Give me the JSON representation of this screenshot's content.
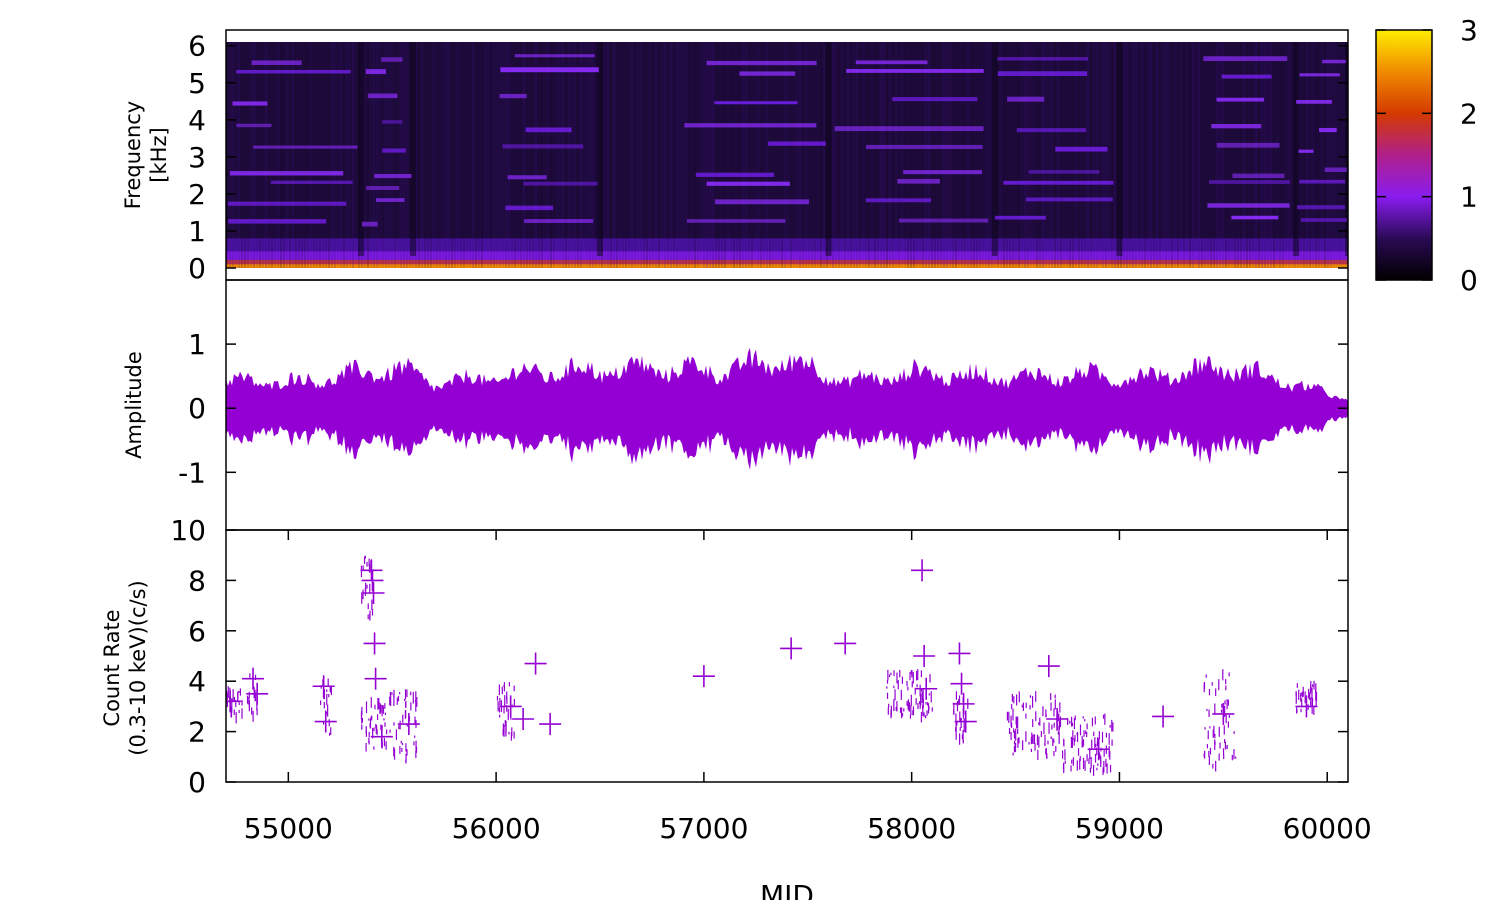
{
  "chart_data": [
    {
      "type": "heatmap",
      "ylabel_lines": [
        "Frequency",
        "[kHz]"
      ],
      "ylim": [
        0,
        6.1
      ],
      "yticks": [
        0,
        1,
        2,
        3,
        4,
        5,
        6
      ],
      "xlim": [
        54700,
        60100
      ],
      "colorbar": {
        "range": [
          0,
          3
        ],
        "ticks": [
          0,
          1,
          2,
          3
        ],
        "colors": [
          "#000000",
          "#2a0a55",
          "#8a1cf0",
          "#b0208a",
          "#d43a00",
          "#f08a00",
          "#ffee00"
        ]
      },
      "active_segments": [
        [
          54700,
          55350
        ],
        [
          55350,
          55600
        ],
        [
          56000,
          56500
        ],
        [
          56900,
          57600
        ],
        [
          57600,
          58400
        ],
        [
          58400,
          59000
        ],
        [
          59400,
          59850
        ],
        [
          59850,
          60100
        ]
      ],
      "harmonics_khz": [
        0.1,
        0.35,
        0.6,
        1.3,
        1.8,
        2.3,
        2.6,
        3.3,
        3.9,
        4.6,
        5.3,
        5.7
      ]
    },
    {
      "type": "area",
      "ylabel": "Amplitude",
      "ylim": [
        -1.9,
        2.0
      ],
      "yticks": [
        -1,
        0,
        1
      ],
      "xlim": [
        54700,
        60100
      ],
      "color": "#9400d3",
      "envelope_peaks": [
        [
          54700,
          0.6
        ],
        [
          55050,
          0.6
        ],
        [
          55300,
          0.75
        ],
        [
          55520,
          0.9
        ],
        [
          55700,
          0.55
        ],
        [
          56000,
          0.7
        ],
        [
          56150,
          0.8
        ],
        [
          56400,
          0.85
        ],
        [
          56800,
          0.9
        ],
        [
          57100,
          0.85
        ],
        [
          57400,
          1.1
        ],
        [
          57700,
          0.6
        ],
        [
          58000,
          0.8
        ],
        [
          58250,
          0.75
        ],
        [
          58500,
          0.7
        ],
        [
          58800,
          0.75
        ],
        [
          59100,
          0.7
        ],
        [
          59500,
          0.95
        ],
        [
          59800,
          0.6
        ],
        [
          60100,
          0.2
        ]
      ]
    },
    {
      "type": "scatter",
      "ylabel_lines": [
        "Count Rate",
        "(0.3-10 keV)(c/s)"
      ],
      "xlabel": "MJD",
      "xlim": [
        54700,
        60100
      ],
      "ylim": [
        0,
        10
      ],
      "xticks": [
        55000,
        56000,
        57000,
        58000,
        59000,
        60000
      ],
      "yticks": [
        0,
        2,
        4,
        6,
        8,
        10
      ],
      "color": "#9400d3",
      "marker": "cross",
      "x": [
        54720,
        54830,
        54850,
        55170,
        55180,
        55400,
        55405,
        55410,
        55415,
        55420,
        55450,
        55580,
        56070,
        56130,
        56190,
        56260,
        57000,
        57420,
        57680,
        58050,
        58060,
        58070,
        58230,
        58240,
        58250,
        58260,
        58660,
        58700,
        58900,
        59210,
        59500,
        59900
      ],
      "y": [
        3.2,
        4.1,
        3.5,
        3.8,
        2.4,
        8.4,
        8.0,
        7.5,
        5.5,
        4.1,
        1.8,
        2.3,
        3.0,
        2.5,
        4.7,
        2.3,
        4.2,
        5.3,
        5.5,
        8.4,
        5.0,
        3.7,
        5.1,
        3.9,
        3.1,
        2.4,
        4.6,
        2.5,
        1.3,
        2.6,
        2.7,
        3.0
      ],
      "dense_clusters": [
        {
          "x": [
            54700,
            54780
          ],
          "y": [
            2.5,
            3.6
          ]
        },
        {
          "x": [
            54800,
            54850
          ],
          "y": [
            2.6,
            4.3
          ]
        },
        {
          "x": [
            55150,
            55210
          ],
          "y": [
            1.6,
            4.0
          ]
        },
        {
          "x": [
            55340,
            55470
          ],
          "y": [
            1.2,
            3.2
          ]
        },
        {
          "x": [
            55350,
            55410
          ],
          "y": [
            6.5,
            9.1
          ]
        },
        {
          "x": [
            55470,
            55620
          ],
          "y": [
            0.8,
            3.6
          ]
        },
        {
          "x": [
            56000,
            56100
          ],
          "y": [
            1.8,
            3.9
          ]
        },
        {
          "x": [
            57880,
            58100
          ],
          "y": [
            2.5,
            4.4
          ]
        },
        {
          "x": [
            58200,
            58280
          ],
          "y": [
            1.6,
            3.5
          ]
        },
        {
          "x": [
            58460,
            58720
          ],
          "y": [
            1.0,
            3.4
          ]
        },
        {
          "x": [
            58720,
            58970
          ],
          "y": [
            0.4,
            2.6
          ]
        },
        {
          "x": [
            59400,
            59560
          ],
          "y": [
            0.6,
            4.3
          ]
        },
        {
          "x": [
            59850,
            59950
          ],
          "y": [
            2.8,
            3.9
          ]
        }
      ]
    }
  ]
}
